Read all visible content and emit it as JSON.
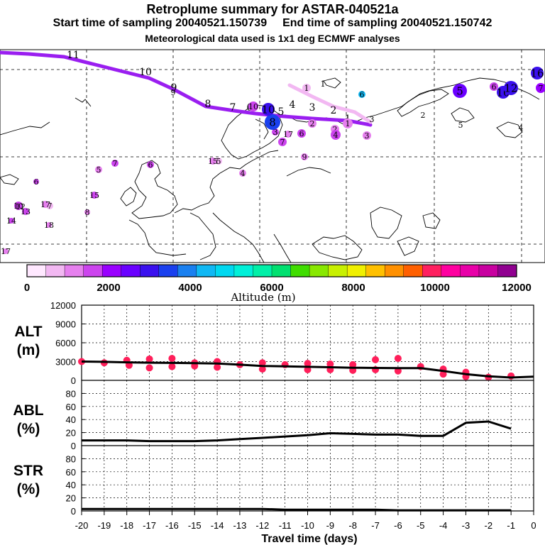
{
  "header": {
    "title": "Retroplume summary for ASTAR-040521a",
    "start_label": "Start time of sampling 20040521.150739",
    "end_label": "End time of sampling 20040521.150742",
    "met_label": "Meteorological data used is 1x1 deg ECMWF analyses"
  },
  "colorbar": {
    "title": "Altitude (m)",
    "ticks": [
      "0",
      "2000",
      "4000",
      "6000",
      "8000",
      "10000",
      "12000"
    ],
    "colors": [
      "#ffe8ff",
      "#f2b8f2",
      "#e680ee",
      "#cc44ee",
      "#9900ff",
      "#6a00ff",
      "#3a10ee",
      "#1a40ee",
      "#1a80f0",
      "#10b8f4",
      "#00d8f0",
      "#00f0d8",
      "#00f0a8",
      "#00e070",
      "#40dd00",
      "#88e800",
      "#c8f000",
      "#f0f000",
      "#ffc000",
      "#ff9000",
      "#ff6000",
      "#ff2060",
      "#ff00a0",
      "#e800a8",
      "#c800a0",
      "#900090"
    ]
  },
  "map": {
    "plume_track_labels": [
      "1",
      "2",
      "3",
      "4",
      "5",
      "6",
      "7",
      "8",
      "9",
      "10",
      "11"
    ],
    "cluster_labels": [
      "1",
      "1",
      "1",
      "2",
      "2",
      "2",
      "3",
      "3",
      "3",
      "4",
      "4",
      "4",
      "5",
      "5",
      "5",
      "5",
      "6",
      "6",
      "6",
      "6",
      "6",
      "7",
      "7",
      "7",
      "7",
      "8",
      "8",
      "9",
      "9",
      "10",
      "10",
      "10",
      "10",
      "12",
      "12",
      "13",
      "14",
      "15",
      "15",
      "16",
      "17",
      "17",
      "17",
      "18"
    ]
  },
  "chart_data": [
    {
      "type": "line",
      "name": "ALT",
      "ylabel": "ALT\n(m)",
      "ylabel_lines": [
        "ALT",
        "(m)"
      ],
      "x": [
        -20,
        -19,
        -18,
        -17,
        -16,
        -15,
        -14,
        -13,
        -12,
        -11,
        -10,
        -9,
        -8,
        -7,
        -6,
        -5,
        -4,
        -3,
        -2,
        -1,
        0
      ],
      "values": [
        3000,
        2950,
        2880,
        2820,
        2780,
        2740,
        2680,
        2500,
        2300,
        2230,
        2160,
        2100,
        2020,
        1980,
        1960,
        1950,
        1500,
        1000,
        650,
        450,
        600
      ],
      "scatter_x": [
        -20,
        -19,
        -18,
        -17.9,
        -17,
        -17,
        -16,
        -16,
        -15,
        -15,
        -14,
        -14,
        -13,
        -12,
        -12,
        -11,
        -10,
        -10,
        -9,
        -9,
        -8,
        -8,
        -7,
        -7,
        -6,
        -6,
        -5,
        -4,
        -4,
        -3,
        -3,
        -2,
        -1
      ],
      "scatter_y": [
        3000,
        2800,
        3200,
        2400,
        3400,
        2000,
        3500,
        2200,
        2800,
        2300,
        3000,
        2100,
        2500,
        2800,
        1800,
        2500,
        2700,
        1700,
        2600,
        1700,
        2500,
        1600,
        3300,
        1700,
        3500,
        1500,
        2200,
        1800,
        1000,
        1300,
        600,
        500,
        700
      ],
      "ylim": [
        0,
        12000
      ],
      "yticks": [
        "0",
        "3000",
        "6000",
        "9000",
        "12000"
      ],
      "ytick_values": [
        0,
        3000,
        6000,
        9000,
        12000
      ]
    },
    {
      "type": "line",
      "name": "ABL",
      "ylabel": "ABL\n(%)",
      "ylabel_lines": [
        "ABL",
        "(%)"
      ],
      "x": [
        -20,
        -19,
        -18,
        -17,
        -16,
        -15,
        -14,
        -13,
        -12,
        -11,
        -10,
        -9,
        -8,
        -7,
        -6,
        -5,
        -4,
        -3,
        -2,
        -1
      ],
      "values": [
        8,
        8,
        8,
        7,
        7,
        7,
        8,
        10,
        12,
        14,
        16,
        19,
        18,
        17,
        17,
        15,
        15,
        35,
        37,
        26
      ],
      "ylim": [
        0,
        100
      ],
      "yticks": [
        "0",
        "20",
        "40",
        "60",
        "80"
      ],
      "ytick_values": [
        0,
        20,
        40,
        60,
        80
      ]
    },
    {
      "type": "line",
      "name": "STR",
      "ylabel": "STR\n(%)",
      "ylabel_lines": [
        "STR",
        "(%)"
      ],
      "x": [
        -20,
        -19,
        -18,
        -17,
        -16,
        -15,
        -14,
        -13,
        -12,
        -11,
        -10,
        -9,
        -8,
        -7,
        -6,
        -5,
        -4,
        -3,
        -2,
        -1
      ],
      "values": [
        3,
        3,
        3,
        3,
        3,
        3,
        3,
        3,
        3,
        2,
        2,
        2,
        2,
        2,
        1,
        1,
        1,
        1,
        1,
        1
      ],
      "ylim": [
        0,
        100
      ],
      "yticks": [
        "0",
        "20",
        "40",
        "60",
        "80"
      ],
      "ytick_values": [
        0,
        20,
        40,
        60,
        80
      ]
    }
  ],
  "xaxis": {
    "label": "Travel time (days)",
    "ticks": [
      "-20",
      "-19",
      "-18",
      "-17",
      "-16",
      "-15",
      "-14",
      "-13",
      "-12",
      "-11",
      "-10",
      "-9",
      "-8",
      "-7",
      "-6",
      "-5",
      "-4",
      "-3",
      "-2",
      "-1",
      "0"
    ],
    "tick_values": [
      -20,
      -19,
      -18,
      -17,
      -16,
      -15,
      -14,
      -13,
      -12,
      -11,
      -10,
      -9,
      -8,
      -7,
      -6,
      -5,
      -4,
      -3,
      -2,
      -1,
      0
    ]
  }
}
